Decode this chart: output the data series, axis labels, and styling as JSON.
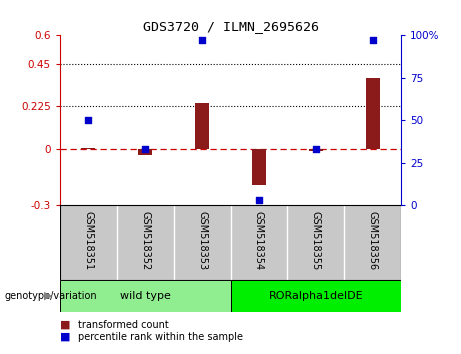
{
  "title": "GDS3720 / ILMN_2695626",
  "samples": [
    "GSM518351",
    "GSM518352",
    "GSM518353",
    "GSM518354",
    "GSM518355",
    "GSM518356"
  ],
  "red_values": [
    0.003,
    -0.032,
    0.24,
    -0.195,
    -0.01,
    0.375
  ],
  "blue_values": [
    50,
    33,
    97,
    3,
    33,
    97
  ],
  "left_ylim": [
    -0.3,
    0.6
  ],
  "right_ylim": [
    0,
    100
  ],
  "left_yticks": [
    -0.3,
    0,
    0.225,
    0.45,
    0.6
  ],
  "left_yticklabels": [
    "-0.3",
    "0",
    "0.225",
    "0.45",
    "0.6"
  ],
  "right_yticks": [
    0,
    25,
    50,
    75,
    100
  ],
  "right_yticklabels": [
    "0",
    "25",
    "50",
    "75",
    "100%"
  ],
  "hlines": [
    0.225,
    0.45
  ],
  "hline_zero": 0.0,
  "bar_color": "#8B1A1A",
  "dot_color": "#0000CC",
  "zero_line_color": "#CC0000",
  "background_color": "#FFFFFF",
  "wild_type_label": "wild type",
  "rorα_label": "RORalpha1delDE",
  "wild_type_color": "#90EE90",
  "rorα_color": "#00EE00",
  "genotype_label": "genotype/variation",
  "legend_red_label": "transformed count",
  "legend_blue_label": "percentile rank within the sample",
  "bar_width": 0.25,
  "sample_bg_color": "#C8C8C8"
}
